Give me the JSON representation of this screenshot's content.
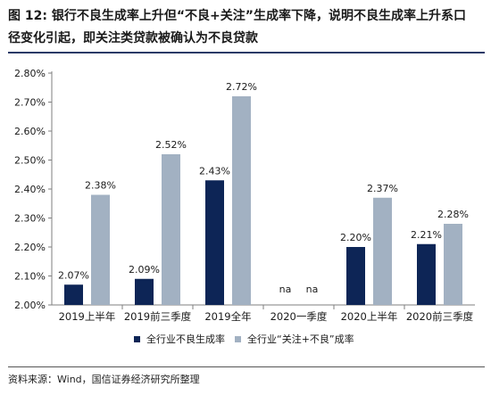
{
  "header": {
    "title_line1": "图 12: 银行不良生成率上升但“不良+关注”生成率下降，说明不良生成率上升系口",
    "title_line2": "径变化引起，即关注类贷款被确认为不良贷款"
  },
  "footer": {
    "source": "资料来源：Wind，国信证券经济研究所整理"
  },
  "colors": {
    "series1": "#0d2556",
    "series2": "#a2b1c2",
    "rule": "#2b3a67"
  },
  "chart_data": {
    "type": "bar",
    "categories": [
      "2019上半年",
      "2019前三季度",
      "2019全年",
      "2020一季度",
      "2020上半年",
      "2020前三季度"
    ],
    "series": [
      {
        "name": "全行业不良生成率",
        "values": [
          2.07,
          2.09,
          2.43,
          null,
          2.2,
          2.21
        ],
        "labels": [
          "2.07%",
          "2.09%",
          "2.43%",
          "na",
          "2.20%",
          "2.21%"
        ]
      },
      {
        "name": "全行业“关注+不良”成率",
        "values": [
          2.38,
          2.52,
          2.72,
          null,
          2.37,
          2.28
        ],
        "labels": [
          "2.38%",
          "2.52%",
          "2.72%",
          "na",
          "2.37%",
          "2.28%"
        ]
      }
    ],
    "yticks": [
      "2.00%",
      "2.10%",
      "2.20%",
      "2.30%",
      "2.40%",
      "2.50%",
      "2.60%",
      "2.70%",
      "2.80%"
    ],
    "ylim": [
      2.0,
      2.8
    ],
    "grid": false,
    "legend": "bottom"
  }
}
